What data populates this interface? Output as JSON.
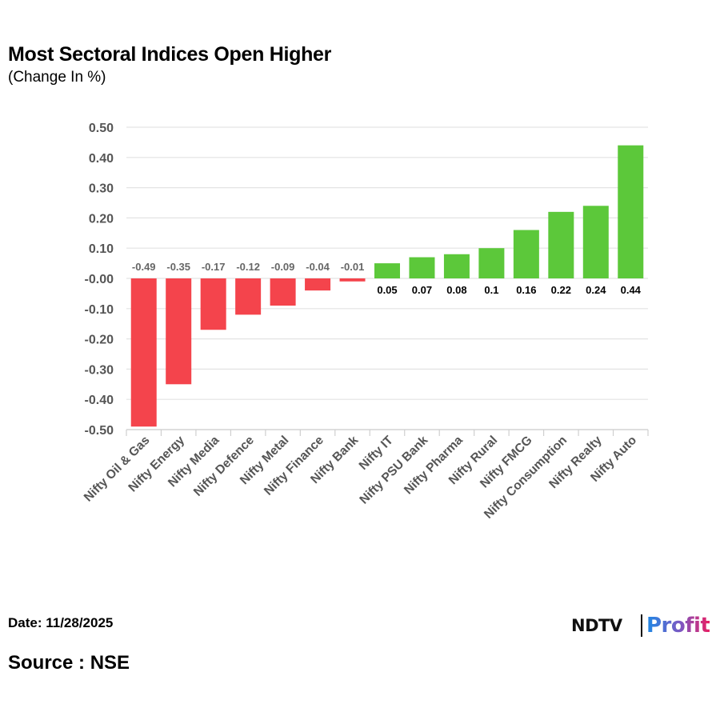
{
  "footer": {
    "date": "Date: 11/28/2025",
    "source": "Source : NSE"
  },
  "brand": {
    "ndtv": "NDTV",
    "profit": "Profit"
  },
  "colors": {
    "negative": "#f4444c",
    "positive": "#5cc83a",
    "grid": "#e3e3e3",
    "axis_text": "#555555",
    "neg_label": "#666666",
    "pos_label": "#000000"
  },
  "chart_data": {
    "type": "bar",
    "title": "Most Sectoral Indices Open Higher",
    "subtitle": "(Change In %)",
    "xlabel": "",
    "ylabel": "",
    "categories": [
      "Nifty Oil & Gas",
      "Nifty Energy",
      "Nifty Media",
      "Nifty Defence",
      "Nifty Metal",
      "Nifty Finance",
      "Nifty Bank",
      "Nifty IT",
      "Nifty PSU Bank",
      "Nifty Pharma",
      "Nifty Rural",
      "Nifty FMCG",
      "Nifty Consumption",
      "Nifty Realty",
      "Nifty Auto"
    ],
    "values": [
      -0.49,
      -0.35,
      -0.17,
      -0.12,
      -0.09,
      -0.04,
      -0.01,
      0.05,
      0.07,
      0.08,
      0.1,
      0.16,
      0.22,
      0.24,
      0.44
    ],
    "data_labels": [
      "-0.49",
      "-0.35",
      "-0.17",
      "-0.12",
      "-0.09",
      "-0.04",
      "-0.01",
      "0.05",
      "0.07",
      "0.08",
      "0.1",
      "0.16",
      "0.22",
      "0.24",
      "0.44"
    ],
    "ylim": [
      -0.5,
      0.5
    ],
    "yticks": [
      0.5,
      0.4,
      0.3,
      0.2,
      0.1,
      0,
      -0.1,
      -0.2,
      -0.3,
      -0.4,
      -0.5
    ],
    "ytick_labels": [
      "0.50",
      "0.40",
      "0.30",
      "0.20",
      "0.10",
      "-0.00",
      "-0.10",
      "-0.20",
      "-0.30",
      "-0.40",
      "-0.50"
    ],
    "grid": true,
    "legend": "none"
  }
}
